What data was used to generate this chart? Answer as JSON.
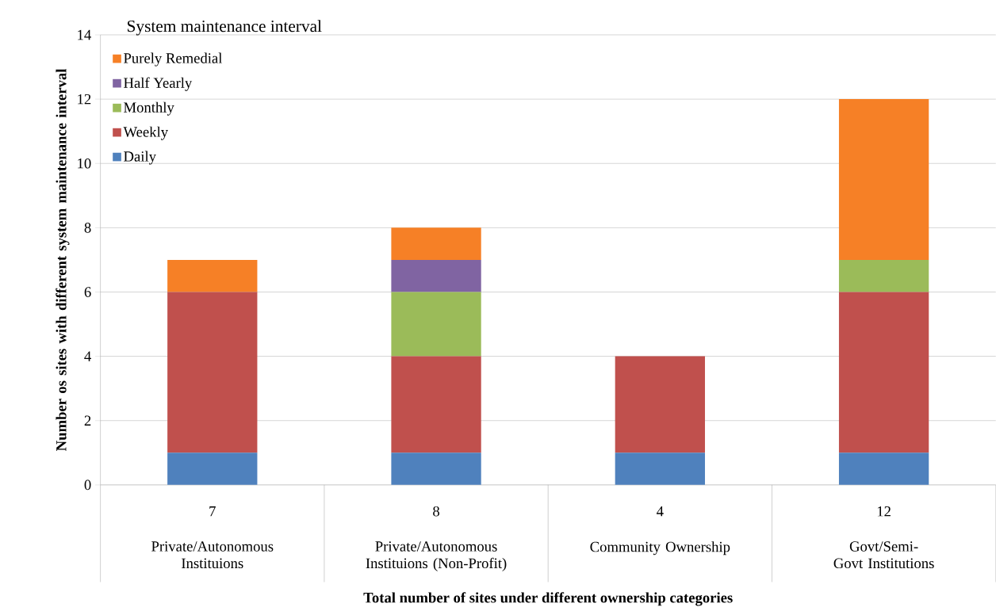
{
  "chart_data": {
    "type": "bar",
    "stacked": true,
    "title": "System maintenance interval",
    "xlabel": "Total number of sites under different ownership categories",
    "ylabel": "Number os sites with different system maintenance interval",
    "categories": [
      "Private/Autonomous Instituions",
      "Private/Autonomous Instituions (Non-Profit)",
      "Community Ownership",
      "Govt/Semi-Govt Institutions"
    ],
    "totals": [
      "7",
      "8",
      "4",
      "12"
    ],
    "series": [
      {
        "name": "Daily",
        "color": "#4f81bd",
        "values": [
          1,
          1,
          1,
          1
        ]
      },
      {
        "name": "Weekly",
        "color": "#c0504d",
        "values": [
          5,
          3,
          3,
          5
        ]
      },
      {
        "name": "Monthly",
        "color": "#9bbb59",
        "values": [
          0,
          2,
          0,
          1
        ]
      },
      {
        "name": "Half Yearly",
        "color": "#8064a2",
        "values": [
          0,
          1,
          0,
          0
        ]
      },
      {
        "name": "Purely Remedial",
        "color": "#f68026",
        "values": [
          1,
          1,
          0,
          5
        ]
      }
    ],
    "ylim": [
      0,
      14
    ],
    "yticks": [
      0,
      2,
      4,
      6,
      8,
      10,
      12,
      14
    ],
    "grid": "y",
    "legend": "top left"
  }
}
